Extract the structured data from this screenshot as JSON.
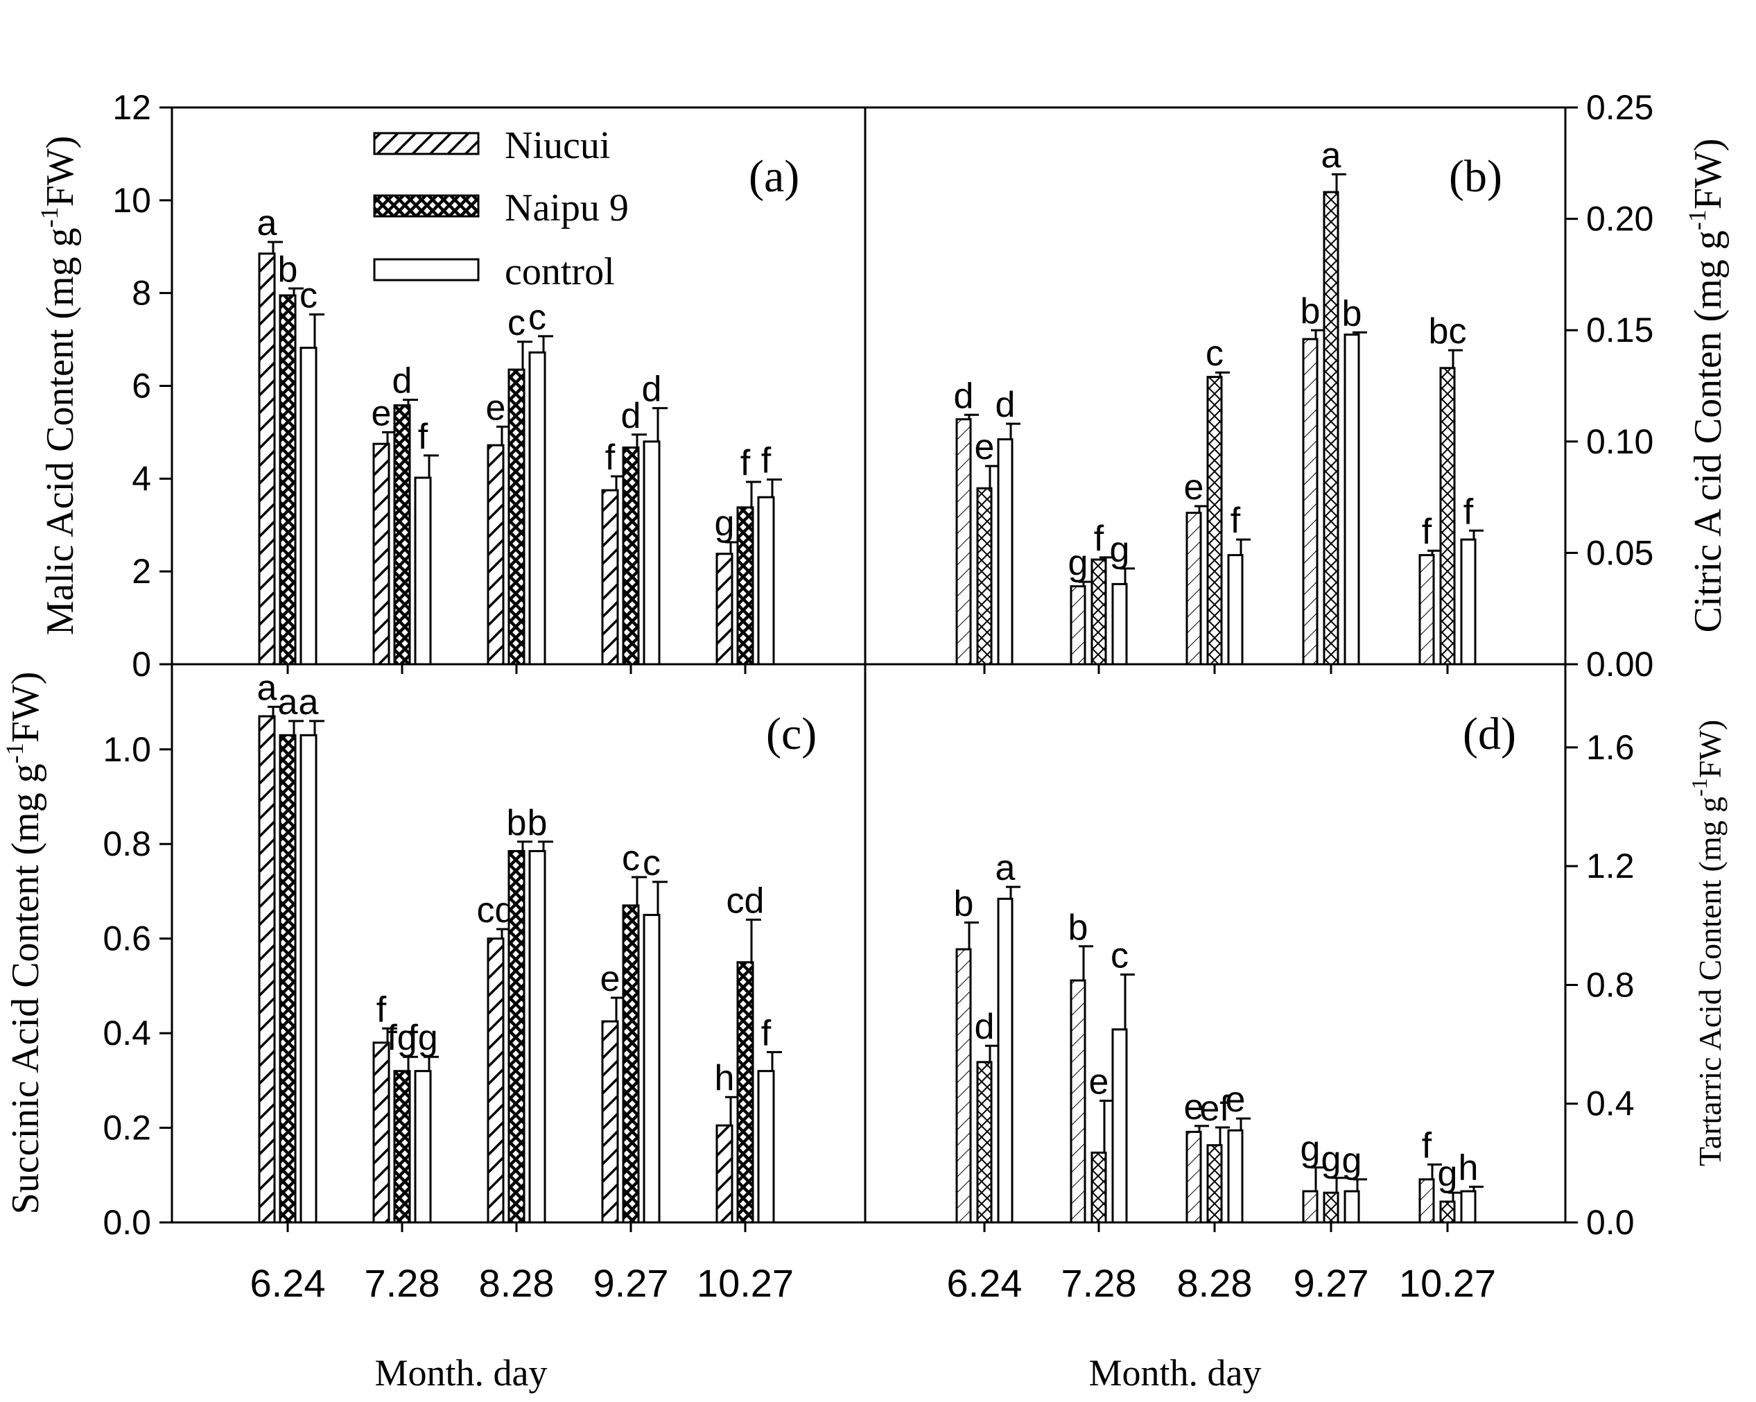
{
  "legend": [
    {
      "name": "Niucui",
      "pattern": "hatch-bold"
    },
    {
      "name": "Naipu 9",
      "pattern": "crosshatch-bold"
    },
    {
      "name": "control",
      "pattern": "empty"
    }
  ],
  "shared_x_label": "Month. day",
  "chart_data": [
    {
      "panel": "(a)",
      "type": "bar",
      "style": "bold",
      "ylabel": "Malic Acid Content (mg g",
      "ylabel_sup": "-1",
      "ylabel_tail": "FW)",
      "ylabel_font": "serif-sans-mixed",
      "ylim": [
        0,
        12
      ],
      "yticks": [
        0,
        2,
        4,
        6,
        8,
        10,
        12
      ],
      "ytick_labels": [
        "0",
        "2",
        "4",
        "6",
        "8",
        "10",
        "12"
      ],
      "categories": [
        "6.24",
        "7.28",
        "8.28",
        "9.27",
        "10.27"
      ],
      "series": [
        {
          "name": "Niucui",
          "values": [
            8.85,
            4.75,
            4.72,
            3.75,
            2.38
          ],
          "errors": [
            0.25,
            0.25,
            0.4,
            0.3,
            0.25
          ],
          "letters": [
            "a",
            "e",
            "e",
            "f",
            "g"
          ]
        },
        {
          "name": "Naipu 9",
          "values": [
            7.95,
            5.58,
            6.35,
            4.67,
            3.38
          ],
          "errors": [
            0.15,
            0.12,
            0.6,
            0.28,
            0.55
          ],
          "letters": [
            "b",
            "d",
            "c",
            "d",
            "f"
          ]
        },
        {
          "name": "control",
          "values": [
            6.82,
            4.02,
            6.72,
            4.8,
            3.6
          ],
          "errors": [
            0.72,
            0.48,
            0.35,
            0.72,
            0.38
          ],
          "letters": [
            "c",
            "f",
            "c",
            "d",
            "f"
          ]
        }
      ]
    },
    {
      "panel": "(b)",
      "type": "bar",
      "style": "thin",
      "ylabel": "Citric A cid Conten (mg g",
      "ylabel_sup": "-1",
      "ylabel_tail": "FW)",
      "ylim": [
        0,
        0.25
      ],
      "yticks": [
        0,
        0.05,
        0.1,
        0.15,
        0.2,
        0.25
      ],
      "ytick_labels": [
        "0.00",
        "0.05",
        "0.10",
        "0.15",
        "0.20",
        "0.25"
      ],
      "categories": [
        "6.24",
        "7.28",
        "8.28",
        "9.27",
        "10.27"
      ],
      "series": [
        {
          "name": "Niucui",
          "values": [
            0.11,
            0.035,
            0.068,
            0.146,
            0.049
          ],
          "errors": [
            0.002,
            0.002,
            0.003,
            0.004,
            0.002
          ],
          "letters": [
            "d",
            "g",
            "e",
            "b",
            "f"
          ]
        },
        {
          "name": "Naipu 9",
          "values": [
            0.079,
            0.047,
            0.129,
            0.212,
            0.133
          ],
          "errors": [
            0.01,
            0.001,
            0.002,
            0.008,
            0.008
          ],
          "letters": [
            "e",
            "f",
            "c",
            "a",
            "bc"
          ]
        },
        {
          "name": "control",
          "values": [
            0.101,
            0.036,
            0.049,
            0.148,
            0.056
          ],
          "errors": [
            0.007,
            0.007,
            0.007,
            0.001,
            0.004
          ],
          "letters": [
            "d",
            "g",
            "f",
            "b",
            "f"
          ]
        }
      ]
    },
    {
      "panel": "(c)",
      "type": "bar",
      "style": "bold",
      "ylabel": "Succinic Acid Content (mg g",
      "ylabel_sup": "-1",
      "ylabel_tail": "FW)",
      "ylim": [
        0,
        1.18
      ],
      "yticks": [
        0,
        0.2,
        0.4,
        0.6,
        0.8,
        1.0
      ],
      "ytick_labels": [
        "0.0",
        "0.2",
        "0.4",
        "0.6",
        "0.8",
        "1.0"
      ],
      "categories": [
        "6.24",
        "7.28",
        "8.28",
        "9.27",
        "10.27"
      ],
      "series": [
        {
          "name": "Niucui",
          "values": [
            1.07,
            0.38,
            0.6,
            0.425,
            0.205
          ],
          "errors": [
            0.02,
            0.03,
            0.02,
            0.05,
            0.06
          ],
          "letters": [
            "a",
            "f",
            "cd",
            "e",
            "h"
          ]
        },
        {
          "name": "Naipu 9",
          "values": [
            1.03,
            0.32,
            0.785,
            0.67,
            0.55
          ],
          "errors": [
            0.03,
            0.03,
            0.02,
            0.06,
            0.09
          ],
          "letters": [
            "a",
            "fg",
            "b",
            "c",
            "cd"
          ]
        },
        {
          "name": "control",
          "values": [
            1.03,
            0.32,
            0.785,
            0.65,
            0.32
          ],
          "errors": [
            0.03,
            0.03,
            0.02,
            0.07,
            0.04
          ],
          "letters": [
            "a",
            "fg",
            "b",
            "c",
            "f"
          ]
        }
      ]
    },
    {
      "panel": "(d)",
      "type": "bar",
      "style": "thin",
      "ylabel": "Tartarric Acid Content (mg g",
      "ylabel_sup": "-1",
      "ylabel_tail": "FW)",
      "ylim": [
        0,
        1.88
      ],
      "yticks": [
        0,
        0.4,
        0.8,
        1.2,
        1.6
      ],
      "ytick_labels": [
        "0.0",
        "0.4",
        "0.8",
        "1.2",
        "1.6"
      ],
      "categories": [
        "6.24",
        "7.28",
        "8.28",
        "9.27",
        "10.27"
      ],
      "series": [
        {
          "name": "Niucui",
          "values": [
            0.92,
            0.815,
            0.305,
            0.105,
            0.145
          ],
          "errors": [
            0.09,
            0.115,
            0.02,
            0.08,
            0.05
          ],
          "letters": [
            "b",
            "b",
            "e",
            "g",
            "f"
          ]
        },
        {
          "name": "Naipu 9",
          "values": [
            0.54,
            0.235,
            0.26,
            0.1,
            0.07
          ],
          "errors": [
            0.055,
            0.175,
            0.06,
            0.05,
            0.03
          ],
          "letters": [
            "d",
            "e",
            "ef",
            "g",
            "g"
          ]
        },
        {
          "name": "control",
          "values": [
            1.09,
            0.65,
            0.31,
            0.105,
            0.105
          ],
          "errors": [
            0.04,
            0.185,
            0.04,
            0.04,
            0.015
          ],
          "letters": [
            "a",
            "c",
            "e",
            "g",
            "h"
          ]
        }
      ]
    }
  ]
}
